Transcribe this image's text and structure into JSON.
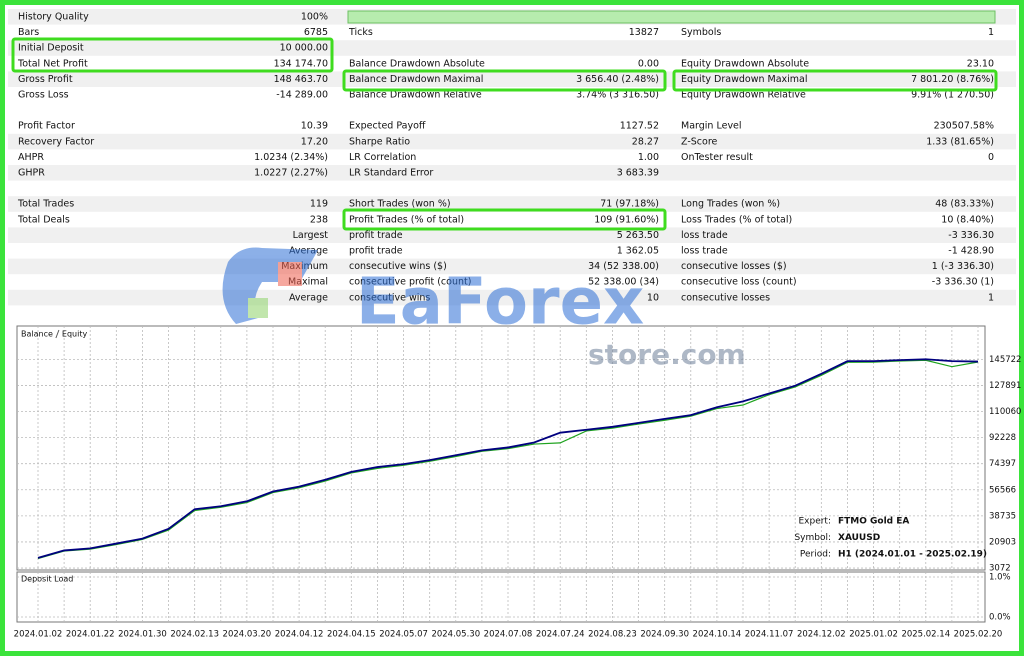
{
  "report": {
    "sections": [
      [
        {
          "left": {
            "label": "History Quality",
            "value": "100%"
          }
        },
        {
          "left": {
            "label": "Bars",
            "value": "6785"
          },
          "mid": {
            "label": "Ticks",
            "value": "13827"
          },
          "right": {
            "label": "Symbols",
            "value": "1"
          }
        },
        {
          "left": {
            "label": "Initial Deposit",
            "value": "10 000.00"
          }
        },
        {
          "left": {
            "label": "Total Net Profit",
            "value": "134 174.70"
          },
          "mid": {
            "label": "Balance Drawdown Absolute",
            "value": "0.00"
          },
          "right": {
            "label": "Equity Drawdown Absolute",
            "value": "23.10"
          }
        },
        {
          "left": {
            "label": "Gross Profit",
            "value": "148 463.70"
          },
          "mid": {
            "label": "Balance Drawdown Maximal",
            "value": "3 656.40 (2.48%)"
          },
          "right": {
            "label": "Equity Drawdown Maximal",
            "value": "7 801.20 (8.76%)"
          }
        },
        {
          "left": {
            "label": "Gross Loss",
            "value": "-14 289.00"
          },
          "mid": {
            "label": "Balance Drawdown Relative",
            "value": "3.74% (3 316.50)"
          },
          "right": {
            "label": "Equity Drawdown Relative",
            "value": "9.91% (1 270.50)"
          }
        }
      ],
      [
        {
          "left": {
            "label": "Profit Factor",
            "value": "10.39"
          },
          "mid": {
            "label": "Expected Payoff",
            "value": "1127.52"
          },
          "right": {
            "label": "Margin Level",
            "value": "230507.58%"
          }
        },
        {
          "left": {
            "label": "Recovery Factor",
            "value": "17.20"
          },
          "mid": {
            "label": "Sharpe Ratio",
            "value": "28.27"
          },
          "right": {
            "label": "Z-Score",
            "value": "1.33 (81.65%)"
          }
        },
        {
          "left": {
            "label": "AHPR",
            "value": "1.0234 (2.34%)"
          },
          "mid": {
            "label": "LR Correlation",
            "value": "1.00"
          },
          "right": {
            "label": "OnTester result",
            "value": "0"
          }
        },
        {
          "left": {
            "label": "GHPR",
            "value": "1.0227 (2.27%)"
          },
          "mid": {
            "label": "LR Standard Error",
            "value": "3 683.39"
          }
        }
      ],
      [
        {
          "left": {
            "label": "Total Trades",
            "value": "119"
          },
          "mid": {
            "label": "Short Trades (won %)",
            "value": "71 (97.18%)"
          },
          "right": {
            "label": "Long Trades (won %)",
            "value": "48 (83.33%)"
          }
        },
        {
          "left": {
            "label": "Total Deals",
            "value": "238"
          },
          "mid": {
            "label": "Profit Trades (% of total)",
            "value": "109 (91.60%)"
          },
          "right": {
            "label": "Loss Trades (% of total)",
            "value": "10 (8.40%)"
          }
        },
        {
          "left": {
            "label": "Largest"
          },
          "mid": {
            "label": "profit trade",
            "value": "5 263.50"
          },
          "right": {
            "label": "loss trade",
            "value": "-3 336.30"
          }
        },
        {
          "left": {
            "label": "Average"
          },
          "mid": {
            "label": "profit trade",
            "value": "1 362.05"
          },
          "right": {
            "label": "loss trade",
            "value": "-1 428.90"
          }
        },
        {
          "left": {
            "label": "Maximum"
          },
          "mid": {
            "label": "consecutive wins ($)",
            "value": "34 (52 338.00)"
          },
          "right": {
            "label": "consecutive losses ($)",
            "value": "1 (-3 336.30)"
          }
        },
        {
          "left": {
            "label": "Maximal"
          },
          "mid": {
            "label": "consecutive profit (count)",
            "value": "52 338.00 (34)"
          },
          "right": {
            "label": "consecutive loss (count)",
            "value": "-3 336.30 (1)"
          }
        },
        {
          "left": {
            "label": "Average"
          },
          "mid": {
            "label": "consecutive wins",
            "value": "10"
          },
          "right": {
            "label": "consecutive losses",
            "value": "1"
          }
        }
      ]
    ]
  },
  "watermark": {
    "brand": "EaForex",
    "domain": "store.com"
  },
  "info": [
    {
      "label": "Expert:",
      "value": "FTMO Gold EA"
    },
    {
      "label": "Symbol:",
      "value": "XAUUSD"
    },
    {
      "label": "Period:",
      "value": "H1 (2024.01.01 - 2025.02.19)"
    }
  ],
  "chart_data": [
    {
      "type": "line",
      "categories": [
        "2024.01.02",
        null,
        "2024.01.22",
        null,
        "2024.01.30",
        null,
        "2024.02.13",
        null,
        "2024.03.20",
        null,
        "2024.04.12",
        null,
        "2024.04.15",
        null,
        "2024.05.07",
        null,
        "2024.05.30",
        null,
        "2024.07.08",
        null,
        "2024.07.24",
        null,
        "2024.08.23",
        null,
        "2024.09.30",
        null,
        "2024.10.14",
        null,
        "2024.11.07",
        null,
        "2024.12.02",
        null,
        "2025.01.02",
        null,
        "2025.02.14",
        null,
        "2025.02.20"
      ],
      "series": [
        {
          "name": "Balance",
          "color": "#00007f",
          "values": [
            10000,
            15100,
            16500,
            19800,
            23200,
            29900,
            43300,
            45300,
            48700,
            55400,
            58700,
            63400,
            68800,
            72100,
            74100,
            76800,
            80200,
            83500,
            85500,
            88900,
            95600,
            97600,
            99600,
            102300,
            105000,
            107600,
            113000,
            117000,
            122400,
            127700,
            135800,
            144500,
            144500,
            145200,
            145800,
            144500,
            144200
          ]
        },
        {
          "name": "Equity",
          "color": "#1fa31f",
          "values": [
            9600,
            14700,
            16000,
            19100,
            22600,
            29000,
            42400,
            44600,
            47800,
            54700,
            57900,
            62500,
            68100,
            71200,
            73300,
            76000,
            79300,
            82900,
            84700,
            87800,
            88600,
            96800,
            98700,
            101500,
            104100,
            106900,
            112100,
            114500,
            121600,
            126900,
            134800,
            143700,
            143800,
            144600,
            145100,
            140700,
            143900
          ]
        }
      ],
      "ylim": [
        1732,
        168512
      ],
      "yticks": [
        3072,
        20903,
        38735,
        56566,
        74397,
        92228,
        110060,
        127891,
        145722
      ],
      "grid": true
    },
    {
      "type": "line",
      "title": "Deposit Load",
      "ylim": [
        -0.125,
        1.125
      ],
      "yticks": [
        {
          "value": 0,
          "label": "0.0%"
        },
        {
          "value": 1,
          "label": "1.0%"
        }
      ],
      "grid": true
    }
  ]
}
